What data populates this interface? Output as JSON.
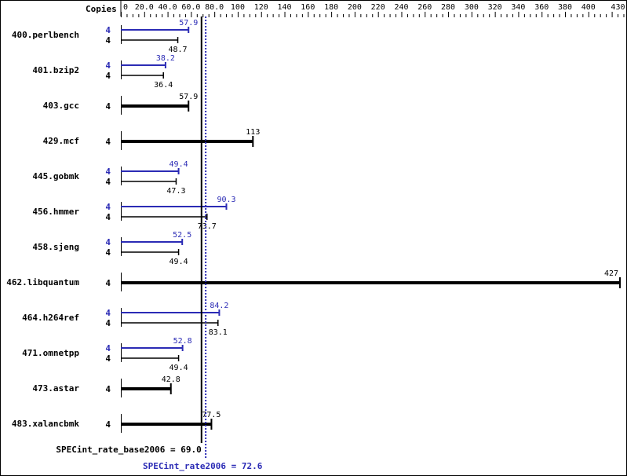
{
  "chart_data": {
    "type": "bar",
    "orientation": "horizontal",
    "axis_header": "Copies",
    "xlim": [
      0,
      430
    ],
    "x_ticks": [
      "0",
      "20.0",
      "40.0",
      "60.0",
      "80.0",
      "100",
      "120",
      "140",
      "160",
      "180",
      "200",
      "220",
      "240",
      "260",
      "280",
      "300",
      "320",
      "340",
      "360",
      "380",
      "400",
      "430"
    ],
    "x_tick_values": [
      0,
      20,
      40,
      60,
      80,
      100,
      120,
      140,
      160,
      180,
      200,
      220,
      240,
      260,
      280,
      300,
      320,
      340,
      360,
      380,
      400,
      430
    ],
    "colors": {
      "peak": "#2b2bb5",
      "base": "#000000"
    },
    "benchmarks": [
      {
        "name": "400.perlbench",
        "copies_peak": "4",
        "copies_base": "4",
        "peak": 57.9,
        "base": 48.7
      },
      {
        "name": "401.bzip2",
        "copies_peak": "4",
        "copies_base": "4",
        "peak": 38.2,
        "base": 36.4
      },
      {
        "name": "403.gcc",
        "copies_base": "4",
        "base": 57.9
      },
      {
        "name": "429.mcf",
        "copies_base": "4",
        "base": 113
      },
      {
        "name": "445.gobmk",
        "copies_peak": "4",
        "copies_base": "4",
        "peak": 49.4,
        "base": 47.3
      },
      {
        "name": "456.hmmer",
        "copies_peak": "4",
        "copies_base": "4",
        "peak": 90.3,
        "base": 73.7
      },
      {
        "name": "458.sjeng",
        "copies_peak": "4",
        "copies_base": "4",
        "peak": 52.5,
        "base": 49.4
      },
      {
        "name": "462.libquantum",
        "copies_base": "4",
        "base": 427
      },
      {
        "name": "464.h264ref",
        "copies_peak": "4",
        "copies_base": "4",
        "peak": 84.2,
        "base": 83.1
      },
      {
        "name": "471.omnetpp",
        "copies_peak": "4",
        "copies_base": "4",
        "peak": 52.8,
        "base": 49.4
      },
      {
        "name": "473.astar",
        "copies_base": "4",
        "base": 42.8
      },
      {
        "name": "483.xalancbmk",
        "copies_base": "4",
        "base": 77.5
      }
    ],
    "summary": {
      "base_label": "SPECint_rate_base2006 = 69.0",
      "base_value": 69.0,
      "peak_label": "SPECint_rate2006 = 72.6",
      "peak_value": 72.6
    }
  }
}
